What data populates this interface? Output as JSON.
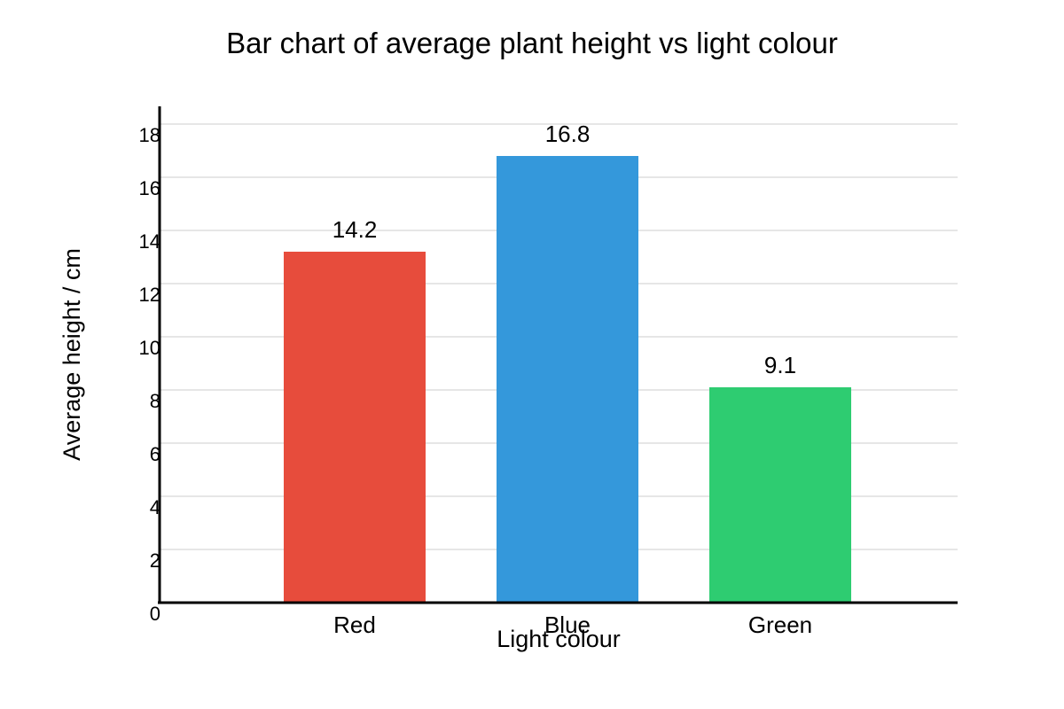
{
  "chart_data": {
    "type": "bar",
    "title": "Bar chart of average plant height vs light colour",
    "xlabel": "Light colour",
    "ylabel": "Average height / cm",
    "categories": [
      "Red",
      "Blue",
      "Green"
    ],
    "values": [
      14.2,
      16.8,
      9.1
    ],
    "value_labels": [
      "14.2",
      "16.8",
      "9.1"
    ],
    "colors": [
      "#e74c3c",
      "#3498db",
      "#2ecc71"
    ],
    "yticks": [
      0,
      2,
      4,
      6,
      8,
      10,
      12,
      14,
      16,
      18
    ],
    "ylim": [
      0,
      19
    ],
    "grid": true,
    "legend": "none"
  }
}
